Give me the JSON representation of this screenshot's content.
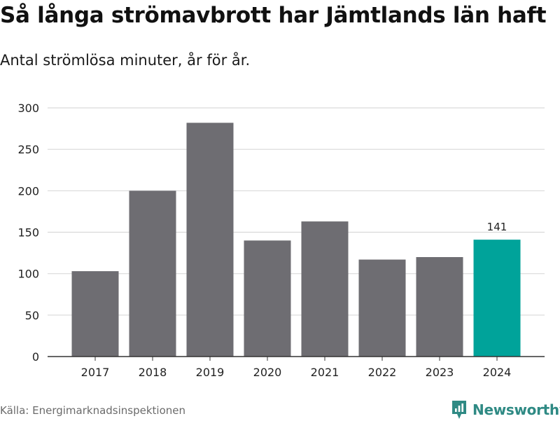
{
  "header": {
    "title": "Så långa strömavbrott har Jämtlands län haft",
    "subtitle": "Antal strömlösa minuter, år för år."
  },
  "footer": {
    "source": "Källa: Energimarknadsinspektionen",
    "brand": "Newsworthy"
  },
  "colors": {
    "bar": "#6e6d72",
    "highlight": "#00a39a",
    "grid": "#d9d9d9",
    "axis": "#333333",
    "brand": "#2f8a84"
  },
  "icons": {
    "logo": "newsworthy-logo-icon"
  },
  "chart_data": {
    "type": "bar",
    "title": "Så långa strömavbrott har Jämtlands län haft",
    "subtitle": "Antal strömlösa minuter, år för år.",
    "xlabel": "",
    "ylabel": "",
    "categories": [
      "2017",
      "2018",
      "2019",
      "2020",
      "2021",
      "2022",
      "2023",
      "2024"
    ],
    "values": [
      103,
      200,
      282,
      140,
      163,
      117,
      120,
      141
    ],
    "highlight_index": 7,
    "data_labels": [
      {
        "index": 7,
        "text": "141"
      }
    ],
    "ylim": [
      0,
      300
    ],
    "yticks": [
      0,
      50,
      100,
      150,
      200,
      250,
      300
    ],
    "grid": true,
    "legend": "none"
  }
}
